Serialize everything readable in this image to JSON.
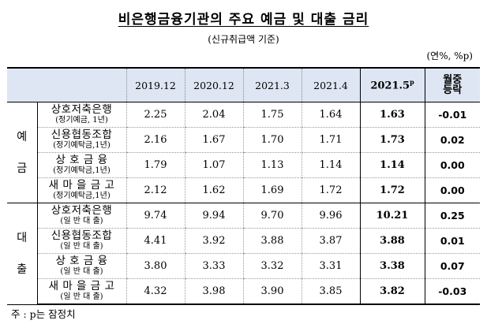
{
  "title": "비은행금융기관의 주요 예금 및 대출 금리",
  "subtitle": "(신규취급액 기준)",
  "unit": "(연%, %p)",
  "headers": {
    "c1": "2019.12",
    "c2": "2020.12",
    "c3": "2021.3",
    "c4": "2021.4",
    "c5": "2021.5",
    "c5_sup": "p",
    "c6": "월중\n등락"
  },
  "groups": {
    "deposit": "예\n\n금",
    "loan": "대\n\n출"
  },
  "rows": [
    {
      "name": "상호저축은행",
      "sub": "(정기예금, 1년)",
      "v": [
        "2.25",
        "2.04",
        "1.75",
        "1.64",
        "1.63",
        "-0.01"
      ]
    },
    {
      "name": "신용협동조합",
      "sub": "(정기예탁금,1년)",
      "v": [
        "2.16",
        "1.67",
        "1.70",
        "1.71",
        "1.73",
        "0.02"
      ]
    },
    {
      "name": "상 호 금 융",
      "sub": "(정기예탁금,1년)",
      "v": [
        "1.79",
        "1.07",
        "1.13",
        "1.14",
        "1.14",
        "0.00"
      ]
    },
    {
      "name": "새 마 을 금 고",
      "sub": "(정기예탁금,1년)",
      "v": [
        "2.12",
        "1.62",
        "1.69",
        "1.72",
        "1.72",
        "0.00"
      ]
    },
    {
      "name": "상호저축은행",
      "sub": "(일 반 대 출)",
      "v": [
        "9.74",
        "9.94",
        "9.70",
        "9.96",
        "10.21",
        "0.25"
      ]
    },
    {
      "name": "신용협동조합",
      "sub": "(일 반 대 출)",
      "v": [
        "4.41",
        "3.92",
        "3.88",
        "3.87",
        "3.88",
        "0.01"
      ]
    },
    {
      "name": "상 호 금 융",
      "sub": "(일 반 대 출)",
      "v": [
        "3.80",
        "3.33",
        "3.32",
        "3.31",
        "3.38",
        "0.07"
      ]
    },
    {
      "name": "새 마 을 금 고",
      "sub": "(일 반 대 출)",
      "v": [
        "4.32",
        "3.98",
        "3.90",
        "3.85",
        "3.82",
        "-0.03"
      ]
    }
  ],
  "note": "주 : p는 잠정치"
}
